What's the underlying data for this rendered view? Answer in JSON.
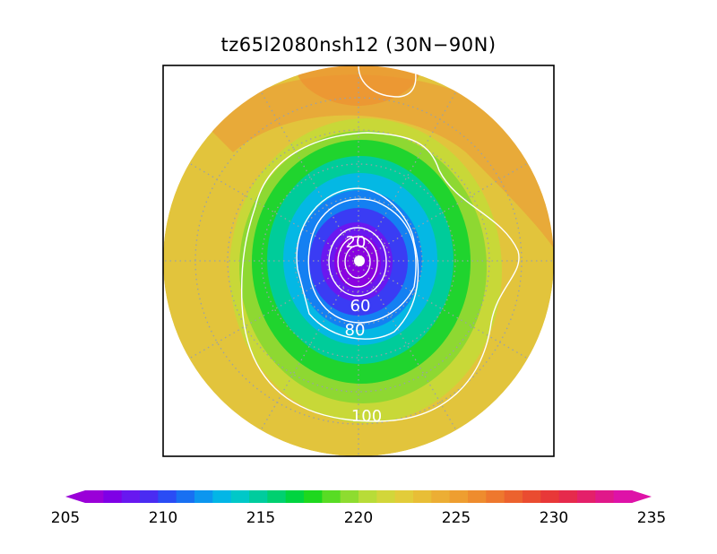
{
  "title": "tz65l2080nsh12 (30N−90N)",
  "map": {
    "projection": "north polar stereographic",
    "lat_range": "30N-90N",
    "grid": true
  },
  "contours": [
    {
      "value": 20,
      "label": "20"
    },
    {
      "value": 60,
      "label": "60"
    },
    {
      "value": 80,
      "label": "80"
    },
    {
      "value": 100,
      "label": "100"
    }
  ],
  "colorbar": {
    "min": 205,
    "max": 235,
    "step": 1,
    "tick_labels": [
      "205",
      "210",
      "215",
      "220",
      "225",
      "230",
      "235"
    ],
    "colors": [
      "#9a00d8",
      "#7f00e6",
      "#6818f0",
      "#4a2cf2",
      "#2a4cf5",
      "#1870f2",
      "#0c96ef",
      "#02b6e6",
      "#00c8c8",
      "#00cc9e",
      "#00d070",
      "#00d440",
      "#1ed81e",
      "#58dc24",
      "#8edc30",
      "#b8dc38",
      "#d2d63a",
      "#e2cc3a",
      "#e8be36",
      "#ecae34",
      "#ee9e30",
      "#ee8c2e",
      "#ee782e",
      "#ec622e",
      "#ea4c30",
      "#e83838",
      "#e62a4c",
      "#e4206a",
      "#e0188a",
      "#de12a8"
    ],
    "arrows": true
  }
}
